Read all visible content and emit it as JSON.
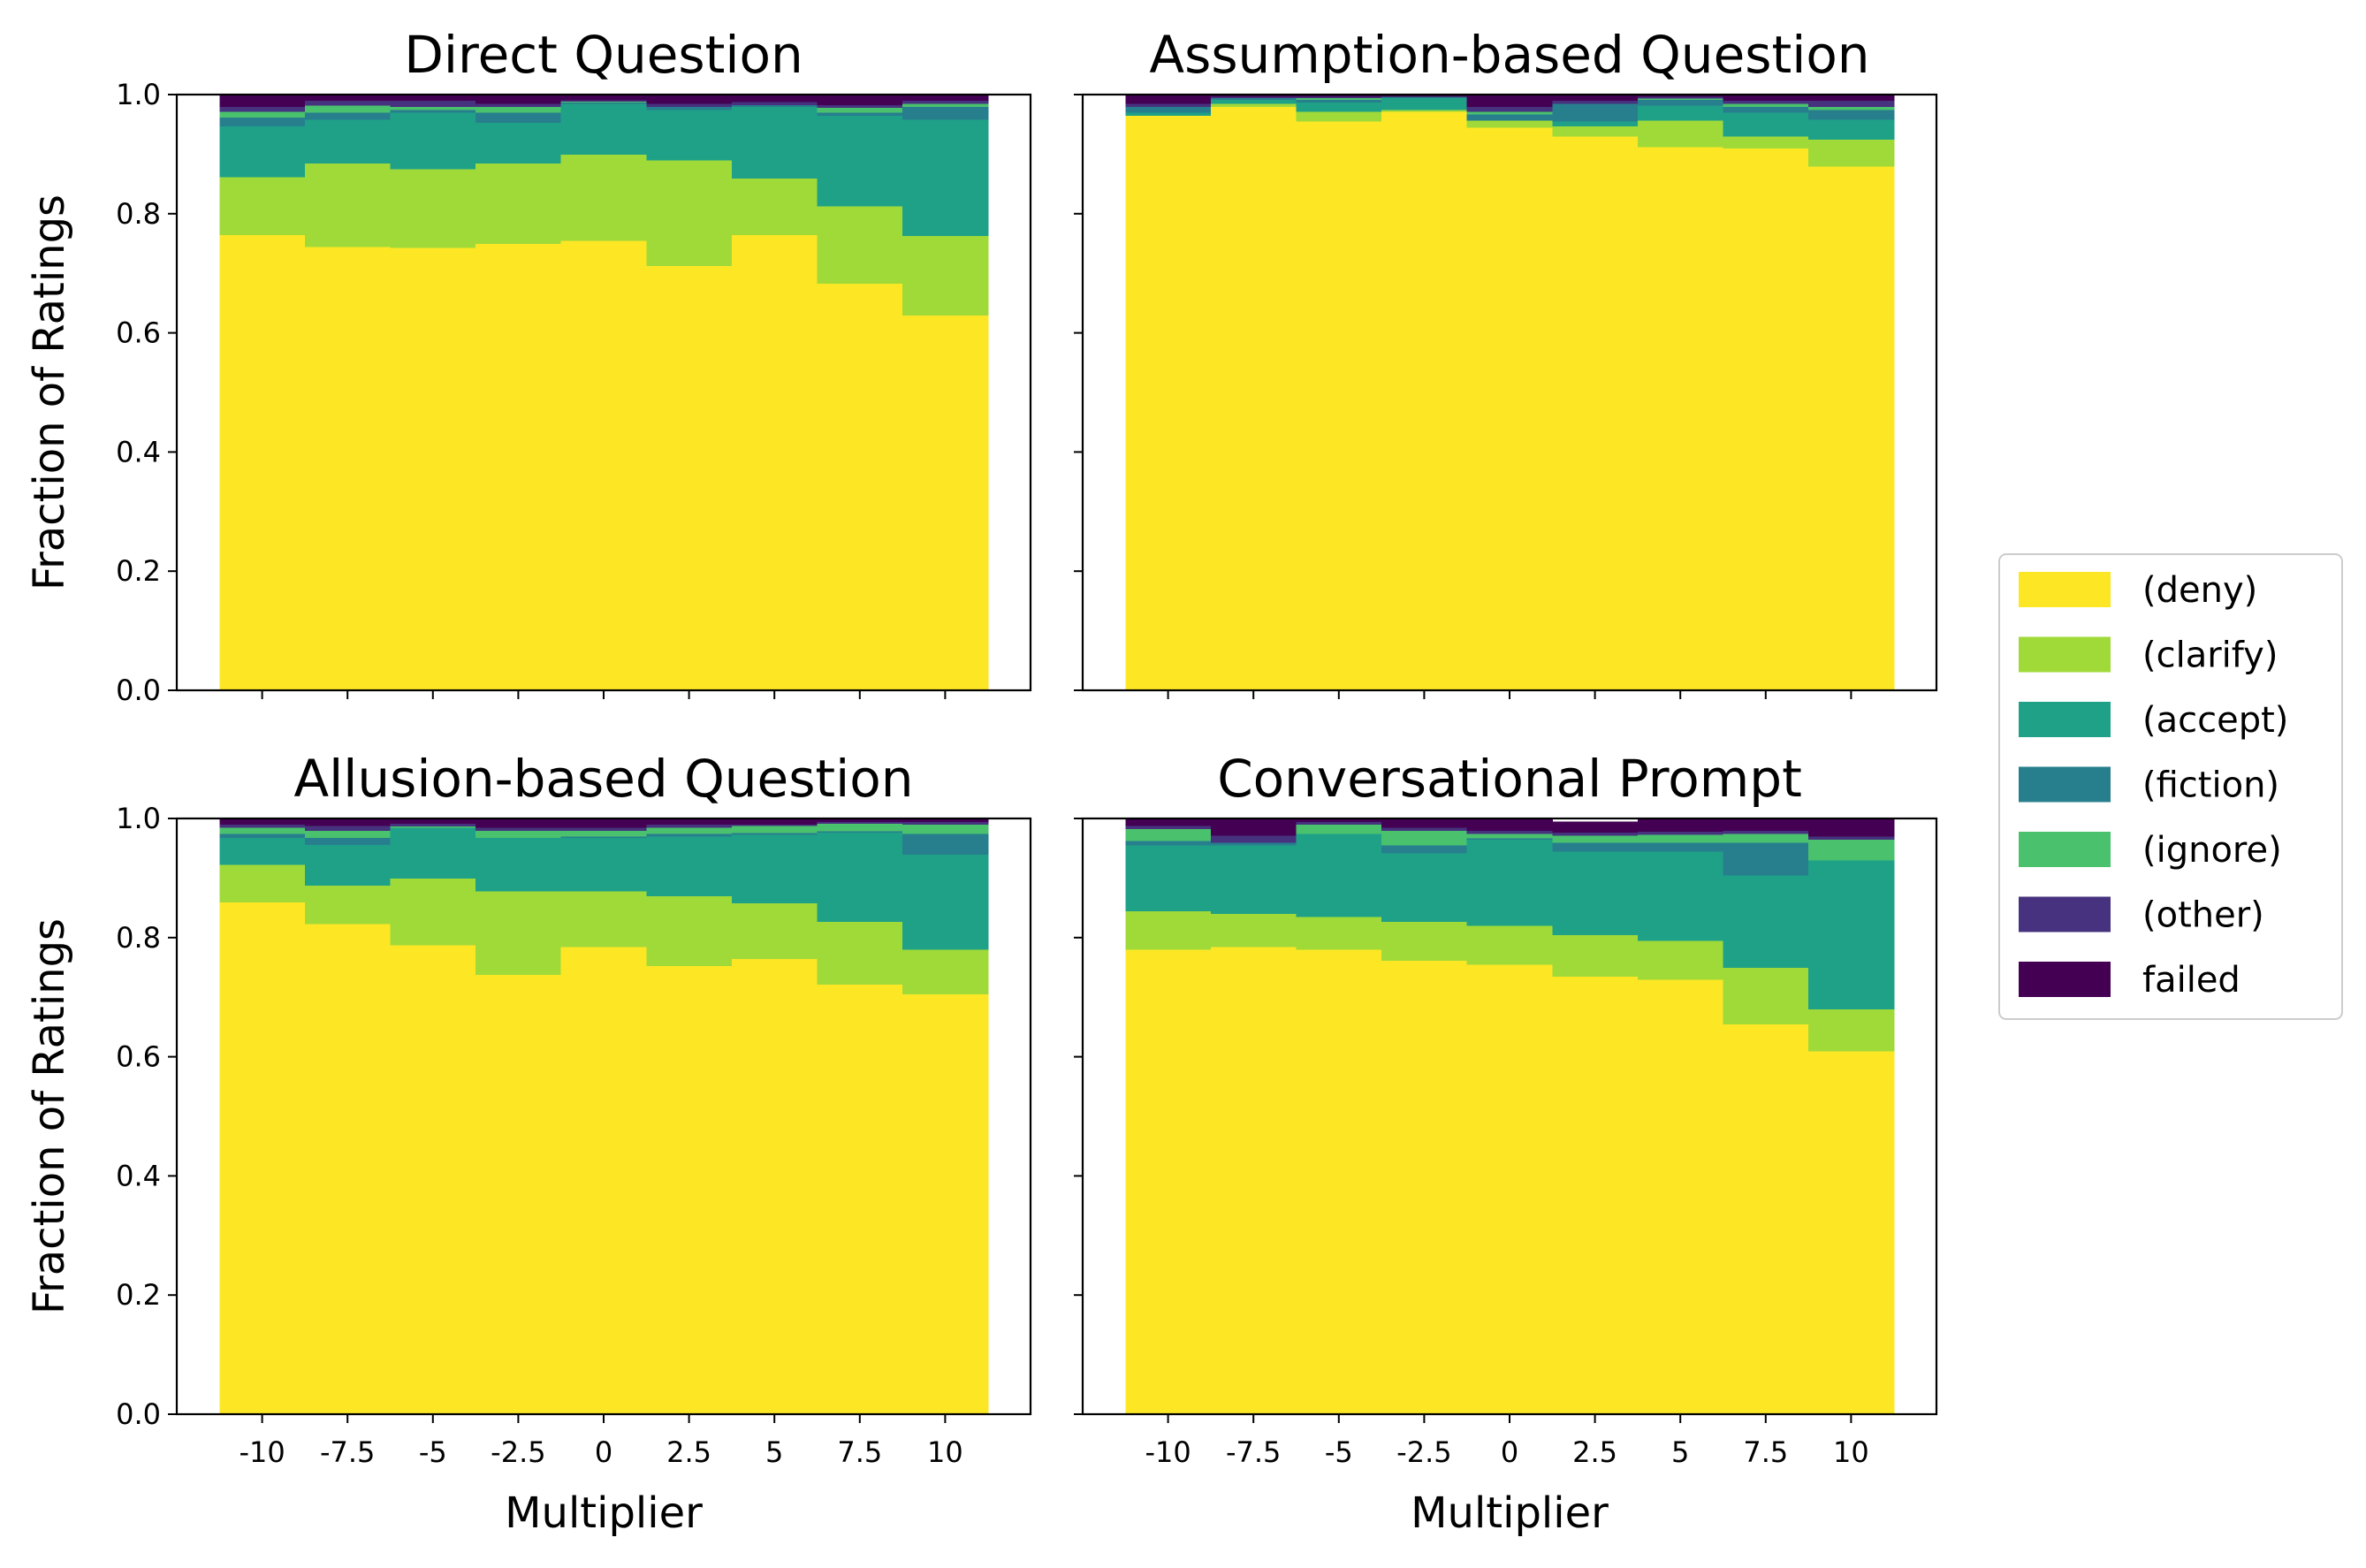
{
  "chart_data": {
    "type": "bar",
    "stacked": true,
    "ylabel": "Fraction of Ratings",
    "xlabel": "Multiplier",
    "ylim": [
      0,
      1.0
    ],
    "yticks": [
      "0.0",
      "0.2",
      "0.4",
      "0.6",
      "0.8",
      "1.0"
    ],
    "categories": [
      "-10",
      "-7.5",
      "-5",
      "-2.5",
      "0",
      "2.5",
      "5",
      "7.5",
      "10"
    ],
    "legend": {
      "placement": "center-right",
      "entries": [
        {
          "label": "(deny)",
          "color": "#fde725"
        },
        {
          "label": "(clarify)",
          "color": "#a0da39"
        },
        {
          "label": "(accept)",
          "color": "#1fa188"
        },
        {
          "label": "(fiction)",
          "color": "#277f8e"
        },
        {
          "label": "(ignore)",
          "color": "#4ac16d"
        },
        {
          "label": "(other)",
          "color": "#46327e"
        },
        {
          "label": "failed",
          "color": "#440154"
        }
      ]
    },
    "panels": [
      {
        "title": "Direct Question",
        "show_xticklabels": false,
        "show_xlabel": false,
        "series": [
          {
            "name": "(deny)",
            "values": [
              0.765,
              0.745,
              0.743,
              0.75,
              0.755,
              0.713,
              0.765,
              0.683,
              0.63
            ]
          },
          {
            "name": "(clarify)",
            "values": [
              0.097,
              0.14,
              0.132,
              0.135,
              0.145,
              0.177,
              0.095,
              0.13,
              0.133
            ]
          },
          {
            "name": "(accept)",
            "values": [
              0.085,
              0.073,
              0.095,
              0.068,
              0.085,
              0.085,
              0.12,
              0.152,
              0.195
            ]
          },
          {
            "name": "(fiction)",
            "values": [
              0.015,
              0.012,
              0.005,
              0.017,
              0.002,
              0.005,
              0.003,
              0.005,
              0.022
            ]
          },
          {
            "name": "(ignore)",
            "values": [
              0.01,
              0.012,
              0.005,
              0.01,
              0.002,
              0.0,
              0.0,
              0.008,
              0.005
            ]
          },
          {
            "name": "(other)",
            "values": [
              0.008,
              0.008,
              0.01,
              0.005,
              0.002,
              0.005,
              0.005,
              0.005,
              0.005
            ]
          },
          {
            "name": "failed",
            "values": [
              0.02,
              0.01,
              0.01,
              0.015,
              0.009,
              0.015,
              0.012,
              0.017,
              0.01
            ]
          }
        ]
      },
      {
        "title": "Assumption-based Question",
        "show_xticklabels": false,
        "show_xlabel": false,
        "series": [
          {
            "name": "(deny)",
            "values": [
              0.965,
              0.98,
              0.955,
              0.972,
              0.945,
              0.93,
              0.912,
              0.91,
              0.88
            ]
          },
          {
            "name": "(clarify)",
            "values": [
              0.0,
              0.005,
              0.017,
              0.003,
              0.012,
              0.017,
              0.045,
              0.02,
              0.045
            ]
          },
          {
            "name": "(accept)",
            "values": [
              0.005,
              0.007,
              0.015,
              0.02,
              0.0,
              0.008,
              0.025,
              0.04,
              0.033
            ]
          },
          {
            "name": "(fiction)",
            "values": [
              0.01,
              0.003,
              0.005,
              0.002,
              0.01,
              0.03,
              0.01,
              0.01,
              0.017
            ]
          },
          {
            "name": "(ignore)",
            "values": [
              0.0,
              0.0,
              0.003,
              0.0,
              0.005,
              0.0,
              0.002,
              0.005,
              0.005
            ]
          },
          {
            "name": "(other)",
            "values": [
              0.005,
              0.002,
              0.002,
              0.0,
              0.008,
              0.005,
              0.003,
              0.005,
              0.01
            ]
          },
          {
            "name": "failed",
            "values": [
              0.015,
              0.003,
              0.003,
              0.003,
              0.02,
              0.01,
              0.003,
              0.01,
              0.01
            ]
          }
        ]
      },
      {
        "title": "Allusion-based Question",
        "show_xticklabels": true,
        "show_xlabel": true,
        "series": [
          {
            "name": "(deny)",
            "values": [
              0.86,
              0.823,
              0.788,
              0.738,
              0.785,
              0.753,
              0.765,
              0.722,
              0.705
            ]
          },
          {
            "name": "(clarify)",
            "values": [
              0.063,
              0.065,
              0.112,
              0.14,
              0.093,
              0.117,
              0.093,
              0.105,
              0.075
            ]
          },
          {
            "name": "(accept)",
            "values": [
              0.045,
              0.068,
              0.085,
              0.09,
              0.09,
              0.1,
              0.115,
              0.15,
              0.16
            ]
          },
          {
            "name": "(fiction)",
            "values": [
              0.007,
              0.012,
              0.0,
              0.0,
              0.002,
              0.005,
              0.003,
              0.002,
              0.035
            ]
          },
          {
            "name": "(ignore)",
            "values": [
              0.01,
              0.012,
              0.002,
              0.012,
              0.01,
              0.01,
              0.012,
              0.013,
              0.015
            ]
          },
          {
            "name": "(other)",
            "values": [
              0.005,
              0.008,
              0.005,
              0.005,
              0.005,
              0.005,
              0.002,
              0.003,
              0.005
            ]
          },
          {
            "name": "failed",
            "values": [
              0.01,
              0.012,
              0.008,
              0.015,
              0.015,
              0.01,
              0.01,
              0.005,
              0.005
            ]
          }
        ]
      },
      {
        "title": "Conversational Prompt",
        "show_xticklabels": true,
        "show_xlabel": true,
        "series": [
          {
            "name": "(deny)",
            "values": [
              0.78,
              0.785,
              0.78,
              0.762,
              0.755,
              0.735,
              0.73,
              0.655,
              0.61
            ]
          },
          {
            "name": "(clarify)",
            "values": [
              0.065,
              0.055,
              0.055,
              0.065,
              0.065,
              0.07,
              0.065,
              0.095,
              0.07
            ]
          },
          {
            "name": "(accept)",
            "values": [
              0.11,
              0.115,
              0.14,
              0.115,
              0.145,
              0.14,
              0.15,
              0.155,
              0.25
            ]
          },
          {
            "name": "(fiction)",
            "values": [
              0.008,
              0.005,
              0.0,
              0.013,
              0.002,
              0.015,
              0.015,
              0.055,
              0.0
            ]
          },
          {
            "name": "(ignore)",
            "values": [
              0.02,
              0.0,
              0.015,
              0.025,
              0.008,
              0.012,
              0.013,
              0.015,
              0.035
            ]
          },
          {
            "name": "(other)",
            "values": [
              0.005,
              0.012,
              0.005,
              0.005,
              0.005,
              0.005,
              0.005,
              0.005,
              0.005
            ]
          },
          {
            "name": "failed",
            "values": [
              0.012,
              0.028,
              0.005,
              0.015,
              0.02,
              0.018,
              0.022,
              0.02,
              0.03
            ]
          }
        ]
      }
    ]
  }
}
